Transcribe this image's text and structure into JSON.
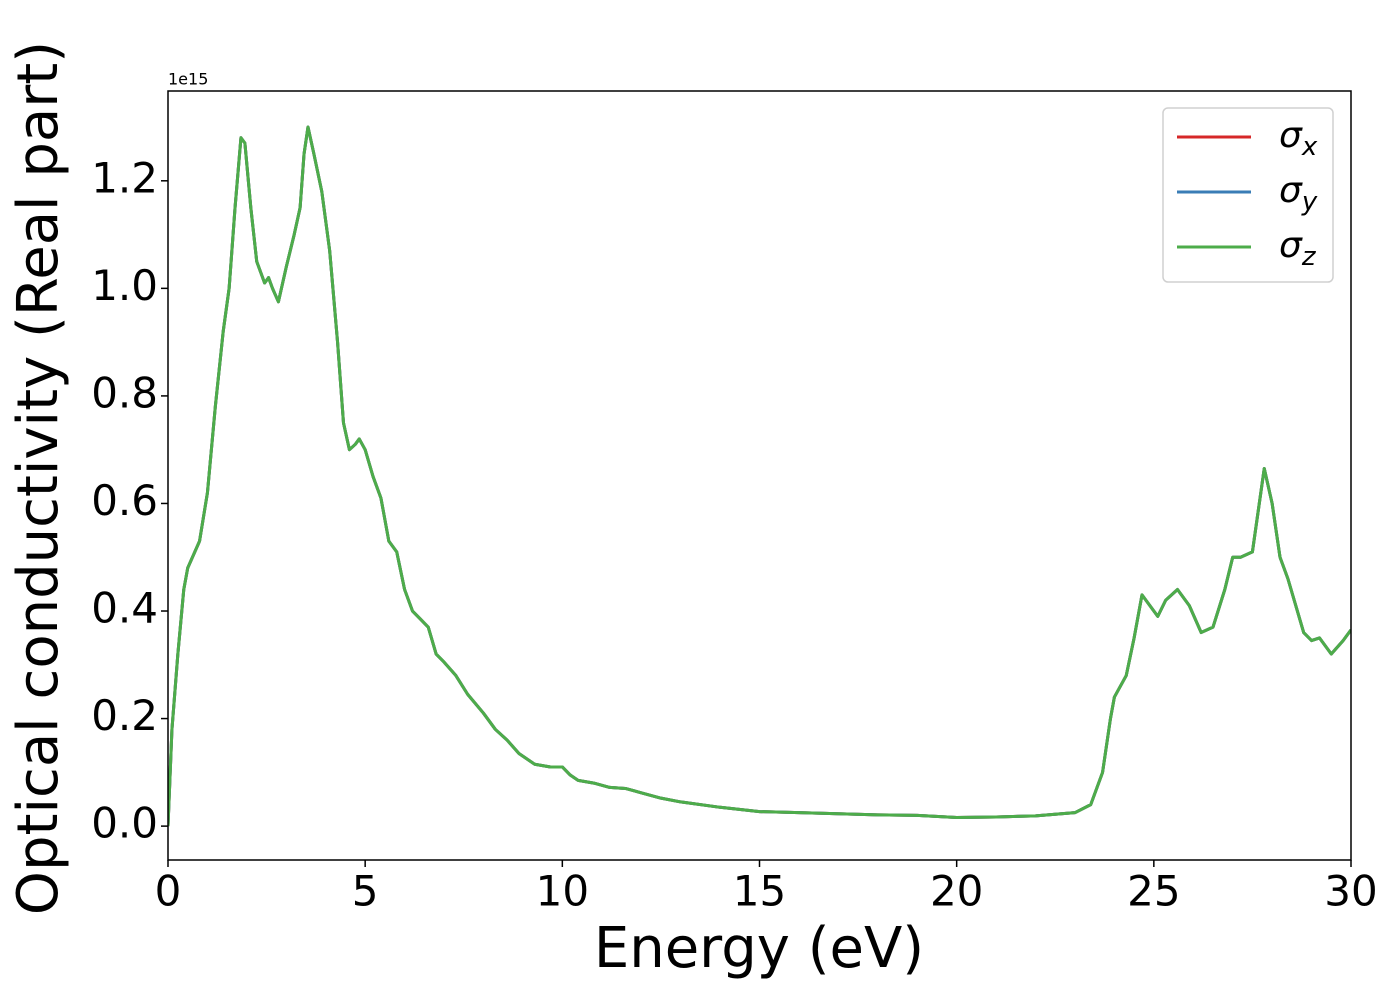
{
  "chart_data": {
    "type": "line",
    "xlabel": "Energy (eV)",
    "ylabel": "Optical conductivity (Real part)",
    "offset_text": "1e15",
    "x": [
      0,
      0.1,
      0.25,
      0.4,
      0.5,
      0.8,
      1.0,
      1.2,
      1.4,
      1.55,
      1.7,
      1.85,
      1.95,
      2.1,
      2.25,
      2.45,
      2.55,
      2.65,
      2.8,
      3.0,
      3.2,
      3.35,
      3.45,
      3.55,
      3.7,
      3.9,
      4.1,
      4.3,
      4.45,
      4.6,
      4.75,
      4.85,
      5.0,
      5.2,
      5.4,
      5.6,
      5.8,
      6.0,
      6.2,
      6.4,
      6.6,
      6.8,
      7.0,
      7.3,
      7.6,
      8.0,
      8.3,
      8.6,
      8.9,
      9.3,
      9.7,
      10.0,
      10.2,
      10.4,
      10.8,
      11.2,
      11.6,
      12.0,
      12.5,
      13.0,
      14.0,
      15.0,
      16.0,
      17.0,
      18.0,
      19.0,
      20.0,
      21.0,
      22.0,
      23.0,
      23.4,
      23.7,
      23.9,
      24.0,
      24.3,
      24.5,
      24.7,
      24.9,
      25.1,
      25.3,
      25.6,
      25.9,
      26.2,
      26.5,
      26.8,
      27.0,
      27.2,
      27.5,
      27.8,
      28.0,
      28.2,
      28.4,
      28.8,
      29.0,
      29.2,
      29.5,
      29.8,
      30.0
    ],
    "series": [
      {
        "name": "σx",
        "color": "#d62728",
        "values": [
          0,
          0.18,
          0.32,
          0.44,
          0.48,
          0.53,
          0.62,
          0.78,
          0.92,
          1.0,
          1.15,
          1.28,
          1.27,
          1.15,
          1.05,
          1.01,
          1.02,
          1.0,
          0.975,
          1.04,
          1.1,
          1.15,
          1.25,
          1.3,
          1.25,
          1.18,
          1.07,
          0.9,
          0.75,
          0.7,
          0.71,
          0.72,
          0.7,
          0.65,
          0.61,
          0.53,
          0.51,
          0.44,
          0.4,
          0.385,
          0.37,
          0.32,
          0.305,
          0.28,
          0.245,
          0.21,
          0.18,
          0.16,
          0.135,
          0.115,
          0.11,
          0.11,
          0.095,
          0.085,
          0.08,
          0.072,
          0.07,
          0.062,
          0.052,
          0.045,
          0.035,
          0.027,
          0.025,
          0.023,
          0.021,
          0.02,
          0.016,
          0.017,
          0.019,
          0.025,
          0.04,
          0.1,
          0.2,
          0.24,
          0.28,
          0.35,
          0.43,
          0.41,
          0.39,
          0.42,
          0.44,
          0.41,
          0.36,
          0.37,
          0.44,
          0.5,
          0.5,
          0.51,
          0.665,
          0.6,
          0.5,
          0.46,
          0.36,
          0.345,
          0.35,
          0.32,
          0.345,
          0.365
        ]
      },
      {
        "name": "σy",
        "color": "#3a7db6",
        "values": [
          0,
          0.18,
          0.32,
          0.44,
          0.48,
          0.53,
          0.62,
          0.78,
          0.92,
          1.0,
          1.15,
          1.28,
          1.27,
          1.15,
          1.05,
          1.01,
          1.02,
          1.0,
          0.975,
          1.04,
          1.1,
          1.15,
          1.25,
          1.3,
          1.25,
          1.18,
          1.07,
          0.9,
          0.75,
          0.7,
          0.71,
          0.72,
          0.7,
          0.65,
          0.61,
          0.53,
          0.51,
          0.44,
          0.4,
          0.385,
          0.37,
          0.32,
          0.305,
          0.28,
          0.245,
          0.21,
          0.18,
          0.16,
          0.135,
          0.115,
          0.11,
          0.11,
          0.095,
          0.085,
          0.08,
          0.072,
          0.07,
          0.062,
          0.052,
          0.045,
          0.035,
          0.027,
          0.025,
          0.023,
          0.021,
          0.02,
          0.016,
          0.017,
          0.019,
          0.025,
          0.04,
          0.1,
          0.2,
          0.24,
          0.28,
          0.35,
          0.43,
          0.41,
          0.39,
          0.42,
          0.44,
          0.41,
          0.36,
          0.37,
          0.44,
          0.5,
          0.5,
          0.51,
          0.665,
          0.6,
          0.5,
          0.46,
          0.36,
          0.345,
          0.35,
          0.32,
          0.345,
          0.365
        ]
      },
      {
        "name": "σz",
        "color": "#4dac4a",
        "values": [
          0,
          0.18,
          0.32,
          0.44,
          0.48,
          0.53,
          0.62,
          0.78,
          0.92,
          1.0,
          1.15,
          1.28,
          1.27,
          1.15,
          1.05,
          1.01,
          1.02,
          1.0,
          0.975,
          1.04,
          1.1,
          1.15,
          1.25,
          1.3,
          1.25,
          1.18,
          1.07,
          0.9,
          0.75,
          0.7,
          0.71,
          0.72,
          0.7,
          0.65,
          0.61,
          0.53,
          0.51,
          0.44,
          0.4,
          0.385,
          0.37,
          0.32,
          0.305,
          0.28,
          0.245,
          0.21,
          0.18,
          0.16,
          0.135,
          0.115,
          0.11,
          0.11,
          0.095,
          0.085,
          0.08,
          0.072,
          0.07,
          0.062,
          0.052,
          0.045,
          0.035,
          0.027,
          0.025,
          0.023,
          0.021,
          0.02,
          0.016,
          0.017,
          0.019,
          0.025,
          0.04,
          0.1,
          0.2,
          0.24,
          0.28,
          0.35,
          0.43,
          0.41,
          0.39,
          0.42,
          0.44,
          0.41,
          0.36,
          0.37,
          0.44,
          0.5,
          0.5,
          0.51,
          0.665,
          0.6,
          0.5,
          0.46,
          0.36,
          0.345,
          0.35,
          0.32,
          0.345,
          0.365
        ]
      }
    ],
    "xlim": [
      0,
      30
    ],
    "xticks": [
      0,
      5,
      10,
      15,
      20,
      25,
      30
    ],
    "ylim": [
      -0.063,
      1.367
    ],
    "yticks": [
      {
        "value": 0,
        "label": "0.0"
      },
      {
        "value": 0.2,
        "label": "0.2"
      },
      {
        "value": 0.4,
        "label": "0.4"
      },
      {
        "value": 0.6,
        "label": "0.6"
      },
      {
        "value": 0.8,
        "label": "0.8"
      },
      {
        "value": 1.0,
        "label": "1.0"
      },
      {
        "value": 1.2,
        "label": "1.2"
      }
    ],
    "legend": "upper right",
    "grid": false
  }
}
